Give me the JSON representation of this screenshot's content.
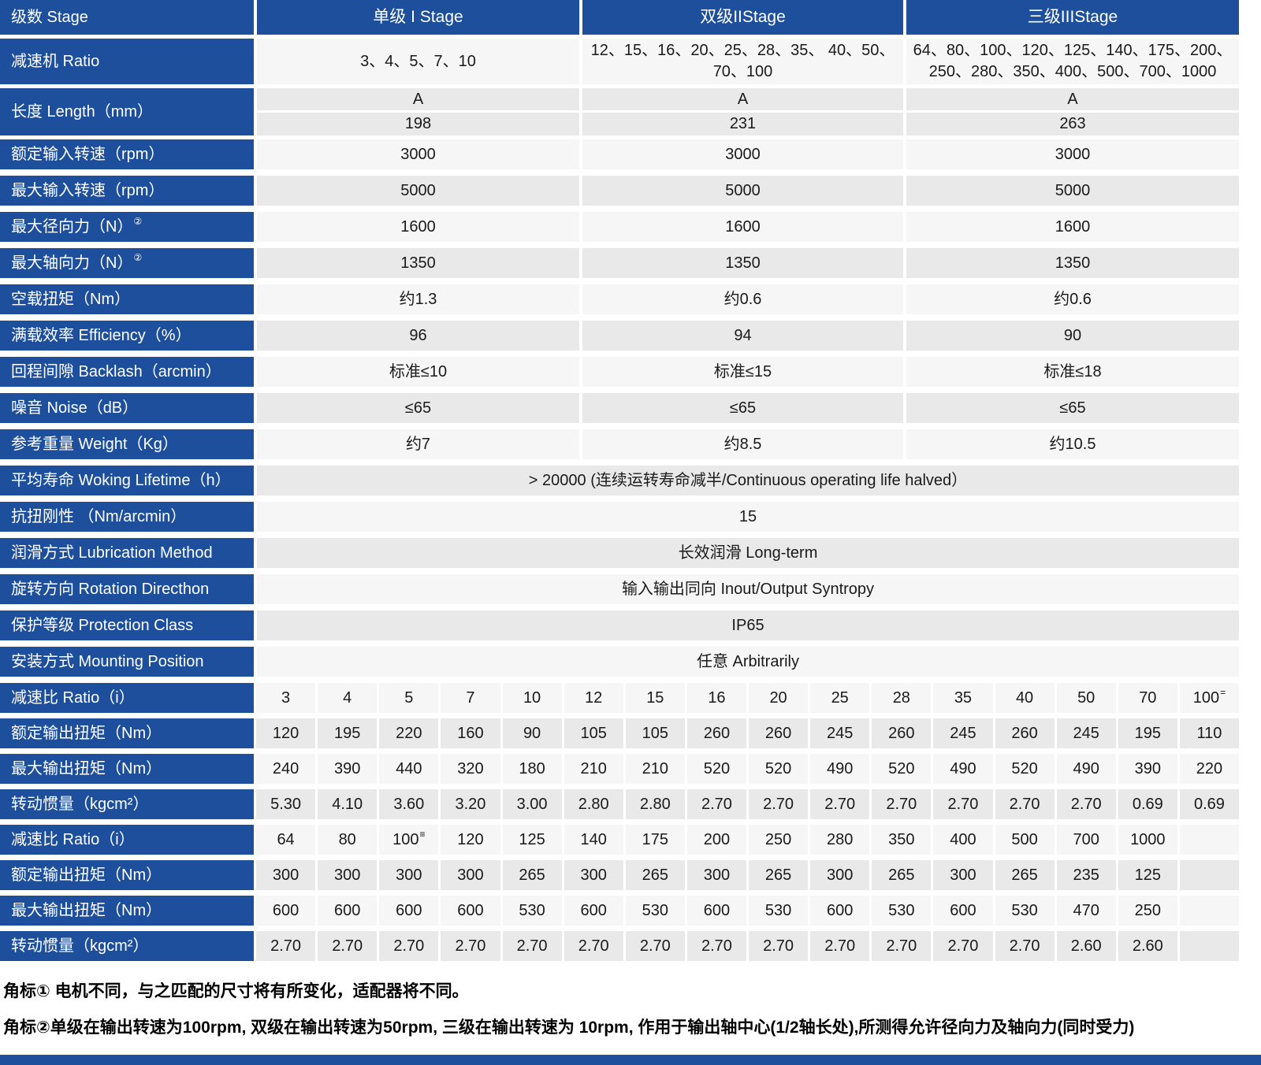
{
  "colors": {
    "primary_blue": "#1d4f9c",
    "row_light": "#f6f6f6",
    "row_dark": "#e9e9e9",
    "text": "#1a1a1a",
    "header_text": "#ffffff"
  },
  "table": {
    "header": [
      "级数 Stage",
      "单级 I Stage",
      "双级IIStage",
      "三级IIIStage"
    ],
    "spec_rows": [
      {
        "type": "triple",
        "tall": true,
        "shade": "light",
        "label": "减速机 Ratio",
        "values": [
          "3、4、5、7、10",
          "12、15、16、20、25、28、35、 40、50、\n70、100",
          "64、80、100、120、125、140、175、200、\n250、280、350、400、500、700、1000"
        ]
      },
      {
        "type": "length",
        "shade": "dark",
        "label": "长度 Length（mm）",
        "sub_a": [
          "A",
          "A",
          "A"
        ],
        "sub_b": [
          "198",
          "231",
          "263"
        ]
      },
      {
        "type": "triple",
        "shade": "light",
        "label": "额定输入转速（rpm）",
        "values": [
          "3000",
          "3000",
          "3000"
        ]
      },
      {
        "type": "triple",
        "shade": "dark",
        "label": "最大输入转速（rpm）",
        "values": [
          "5000",
          "5000",
          "5000"
        ]
      },
      {
        "type": "triple",
        "shade": "light",
        "label": "最大径向力（N）",
        "label_sup": "②",
        "values": [
          "1600",
          "1600",
          "1600"
        ]
      },
      {
        "type": "triple",
        "shade": "dark",
        "label": "最大轴向力（N）",
        "label_sup": "②",
        "values": [
          "1350",
          "1350",
          "1350"
        ]
      },
      {
        "type": "triple",
        "shade": "light",
        "label": "空载扭矩（Nm）",
        "values": [
          "约1.3",
          "约0.6",
          "约0.6"
        ]
      },
      {
        "type": "triple",
        "shade": "dark",
        "label": "满载效率 Efficiency（%）",
        "values": [
          "96",
          "94",
          "90"
        ]
      },
      {
        "type": "triple",
        "shade": "light",
        "label": "回程间隙 Backlash（arcmin）",
        "values": [
          "标准≤10",
          "标准≤15",
          "标准≤18"
        ]
      },
      {
        "type": "triple",
        "shade": "dark",
        "label": "噪音 Noise（dB）",
        "values": [
          "≤65",
          "≤65",
          "≤65"
        ]
      },
      {
        "type": "triple",
        "shade": "light",
        "label": "参考重量 Weight（Kg）",
        "values": [
          "约7",
          "约8.5",
          "约10.5"
        ]
      },
      {
        "type": "merged",
        "shade": "dark",
        "label": "平均寿命 Woking Lifetime（h）",
        "value": "> 20000 (连续运转寿命减半/Continuous operating life halved）"
      },
      {
        "type": "merged",
        "shade": "light",
        "label": "抗扭刚性 （Nm/arcmin）",
        "value": "15"
      },
      {
        "type": "merged",
        "shade": "dark",
        "label": "润滑方式 Lubrication Method",
        "value": "长效润滑 Long-term"
      },
      {
        "type": "merged",
        "shade": "light",
        "label": "旋转方向 Rotation Directhon",
        "value": "输入输出同向 Inout/Output Syntropy"
      },
      {
        "type": "merged",
        "shade": "dark",
        "label": "保护等级 Protection Class",
        "value": "IP65"
      },
      {
        "type": "merged",
        "shade": "light",
        "label": "安装方式 Mounting Position",
        "value": "任意 Arbitrarily"
      }
    ],
    "ratio_rows": [
      {
        "shade": "light",
        "label": "减速比 Ratio（i）",
        "values": [
          "3",
          "4",
          "5",
          "7",
          "10",
          "12",
          "15",
          "16",
          "20",
          "25",
          "28",
          "35",
          "40",
          "50",
          "70",
          {
            "text": "100",
            "sup": "="
          }
        ]
      },
      {
        "shade": "dark",
        "label": "额定输出扭矩（Nm）",
        "values": [
          "120",
          "195",
          "220",
          "160",
          "90",
          "105",
          "105",
          "260",
          "260",
          "245",
          "260",
          "245",
          "260",
          "245",
          "195",
          "110"
        ]
      },
      {
        "shade": "light",
        "label": "最大输出扭矩（Nm）",
        "values": [
          "240",
          "390",
          "440",
          "320",
          "180",
          "210",
          "210",
          "520",
          "520",
          "490",
          "520",
          "490",
          "520",
          "490",
          "390",
          "220"
        ]
      },
      {
        "shade": "dark",
        "label": "转动惯量（kgcm²）",
        "values": [
          "5.30",
          "4.10",
          "3.60",
          "3.20",
          "3.00",
          "2.80",
          "2.80",
          "2.70",
          "2.70",
          "2.70",
          "2.70",
          "2.70",
          "2.70",
          "2.70",
          "0.69",
          "0.69"
        ]
      },
      {
        "shade": "light",
        "label": "减速比 Ratio（i）",
        "values": [
          "64",
          "80",
          {
            "text": "100",
            "sup": "≡"
          },
          "120",
          "125",
          "140",
          "175",
          "200",
          "250",
          "280",
          "350",
          "400",
          "500",
          "700",
          "1000",
          ""
        ]
      },
      {
        "shade": "dark",
        "label": "额定输出扭矩（Nm）",
        "values": [
          "300",
          "300",
          "300",
          "300",
          "265",
          "300",
          "265",
          "300",
          "265",
          "300",
          "265",
          "300",
          "265",
          "235",
          "125",
          ""
        ]
      },
      {
        "shade": "light",
        "label": "最大输出扭矩（Nm）",
        "values": [
          "600",
          "600",
          "600",
          "600",
          "530",
          "600",
          "530",
          "600",
          "530",
          "600",
          "530",
          "600",
          "530",
          "470",
          "250",
          ""
        ]
      },
      {
        "shade": "dark",
        "label": "转动惯量（kgcm²）",
        "values": [
          "2.70",
          "2.70",
          "2.70",
          "2.70",
          "2.70",
          "2.70",
          "2.70",
          "2.70",
          "2.70",
          "2.70",
          "2.70",
          "2.70",
          "2.70",
          "2.60",
          "2.60",
          ""
        ]
      }
    ],
    "footnotes": [
      "角标① 电机不同，与之匹配的尺寸将有所变化，适配器将不同。",
      "角标②单级在输出转速为100rpm, 双级在输出转速为50rpm, 三级在输出转速为 10rpm, 作用于输出轴中心(1/2轴长处),所测得允许径向力及轴向力(同时受力)"
    ]
  }
}
